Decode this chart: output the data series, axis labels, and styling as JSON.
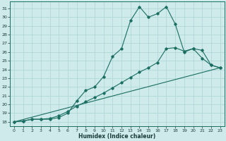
{
  "xlabel": "Humidex (Indice chaleur)",
  "xlim": [
    -0.5,
    23.5
  ],
  "ylim": [
    17.5,
    31.8
  ],
  "yticks": [
    18,
    19,
    20,
    21,
    22,
    23,
    24,
    25,
    26,
    27,
    28,
    29,
    30,
    31
  ],
  "xticks": [
    0,
    1,
    2,
    3,
    4,
    5,
    6,
    7,
    8,
    9,
    10,
    11,
    12,
    13,
    14,
    15,
    16,
    17,
    18,
    19,
    20,
    21,
    22,
    23
  ],
  "bg_color": "#ceeaea",
  "line_color": "#1a6e62",
  "grid_color": "#b0d8d8",
  "line1_x": [
    0,
    1,
    2,
    3,
    4,
    5,
    6,
    7,
    8,
    9,
    10,
    11,
    12,
    13,
    14,
    15,
    16,
    17,
    18,
    19,
    20,
    21,
    22,
    23
  ],
  "line1_y": [
    18.0,
    18.1,
    18.3,
    18.3,
    18.3,
    18.5,
    19.0,
    20.4,
    21.6,
    22.0,
    23.2,
    25.5,
    26.4,
    29.6,
    31.2,
    30.0,
    30.4,
    31.2,
    29.2,
    26.0,
    26.4,
    25.3,
    24.5,
    24.2
  ],
  "line2_x": [
    0,
    1,
    2,
    3,
    4,
    5,
    6,
    7,
    8,
    9,
    10,
    11,
    12,
    13,
    14,
    15,
    16,
    17,
    18,
    19,
    20,
    21,
    22,
    23
  ],
  "line2_y": [
    18.0,
    18.1,
    18.3,
    18.3,
    18.4,
    18.7,
    19.2,
    19.8,
    20.3,
    20.8,
    21.3,
    21.9,
    22.5,
    23.1,
    23.7,
    24.2,
    24.8,
    26.4,
    26.5,
    26.1,
    26.4,
    26.2,
    24.5,
    24.2
  ],
  "line3_x": [
    0,
    23
  ],
  "line3_y": [
    18.0,
    24.2
  ]
}
